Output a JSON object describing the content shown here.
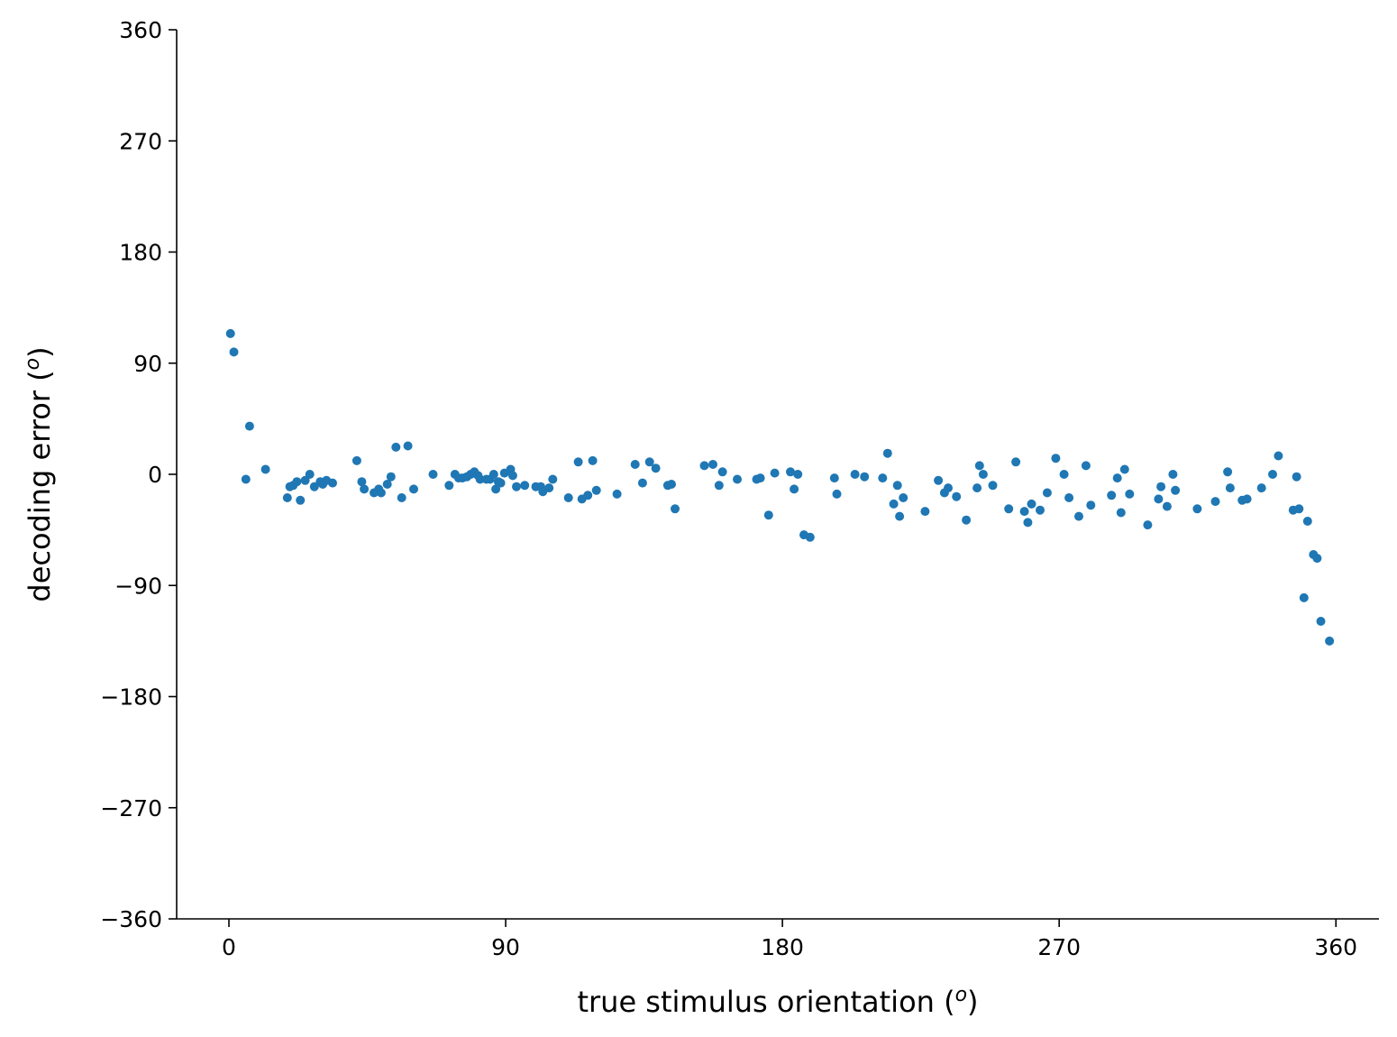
{
  "chart_data": {
    "type": "scatter",
    "xlabel": "true stimulus orientation (",
    "xlabel_sup": "o",
    "xlabel_end": ")",
    "ylabel": "decoding error (",
    "ylabel_sup": "o",
    "ylabel_end": ")",
    "xlim": [
      -17,
      374
    ],
    "ylim": [
      -360,
      360
    ],
    "xticks": [
      0,
      90,
      180,
      270,
      360
    ],
    "xtick_labels": [
      "0",
      "90",
      "180",
      "270",
      "360"
    ],
    "yticks": [
      -360,
      -270,
      -180,
      -90,
      0,
      90,
      180,
      270,
      360
    ],
    "ytick_labels": [
      "−360",
      "−270",
      "−180",
      "−90",
      "0",
      "90",
      "180",
      "270",
      "360"
    ],
    "grid": false,
    "marker_color": "#1f77b4",
    "points": [
      [
        0.5,
        114
      ],
      [
        1.6,
        99
      ],
      [
        5.5,
        -4
      ],
      [
        6.7,
        39
      ],
      [
        11.9,
        4
      ],
      [
        19,
        -19
      ],
      [
        19.8,
        -10
      ],
      [
        20.9,
        -9
      ],
      [
        22.1,
        -6
      ],
      [
        23.2,
        -21
      ],
      [
        24.8,
        -5
      ],
      [
        26.3,
        0
      ],
      [
        27.8,
        -10
      ],
      [
        29.7,
        -6
      ],
      [
        30.5,
        -8
      ],
      [
        31.7,
        -5
      ],
      [
        33.7,
        -7
      ],
      [
        41.6,
        11
      ],
      [
        43.2,
        -6
      ],
      [
        44,
        -12
      ],
      [
        47.2,
        -15
      ],
      [
        48.7,
        -12
      ],
      [
        49.5,
        -15
      ],
      [
        51.5,
        -8
      ],
      [
        52.7,
        -2
      ],
      [
        54.3,
        22
      ],
      [
        56.2,
        -19
      ],
      [
        58.2,
        23
      ],
      [
        60.1,
        -12
      ],
      [
        66.4,
        0
      ],
      [
        71.6,
        -9
      ],
      [
        73.5,
        0
      ],
      [
        74.7,
        -3
      ],
      [
        75.9,
        -3
      ],
      [
        77.4,
        -2
      ],
      [
        78.6,
        0
      ],
      [
        79.8,
        2
      ],
      [
        81,
        -1
      ],
      [
        81.7,
        -4
      ],
      [
        83.7,
        -4
      ],
      [
        84.9,
        -4
      ],
      [
        86.1,
        0
      ],
      [
        86.8,
        -12
      ],
      [
        87.6,
        -6
      ],
      [
        88.4,
        -7
      ],
      [
        89.6,
        1
      ],
      [
        91.6,
        4
      ],
      [
        92.3,
        -1
      ],
      [
        93.5,
        -10
      ],
      [
        96.2,
        -9
      ],
      [
        99.8,
        -10
      ],
      [
        101.4,
        -10
      ],
      [
        102.1,
        -14
      ],
      [
        104.1,
        -11
      ],
      [
        105.3,
        -4
      ],
      [
        110.4,
        -19
      ],
      [
        113.6,
        10
      ],
      [
        114.8,
        -20
      ],
      [
        116.7,
        -17
      ],
      [
        118.3,
        11
      ],
      [
        119.5,
        -13
      ],
      [
        126.2,
        -16
      ],
      [
        132.1,
        8
      ],
      [
        134.5,
        -7
      ],
      [
        136.8,
        10
      ],
      [
        138.8,
        5
      ],
      [
        142.7,
        -9
      ],
      [
        143.9,
        -8
      ],
      [
        145.1,
        -28
      ],
      [
        154.6,
        7
      ],
      [
        157.4,
        8
      ],
      [
        159.4,
        -9
      ],
      [
        160.5,
        2
      ],
      [
        165.3,
        -4
      ],
      [
        171.6,
        -4
      ],
      [
        172.8,
        -3
      ],
      [
        175.5,
        -33
      ],
      [
        177.5,
        1
      ],
      [
        182.6,
        2
      ],
      [
        183.8,
        -12
      ],
      [
        185,
        0
      ],
      [
        187,
        -49
      ],
      [
        189,
        -51
      ],
      [
        196.9,
        -3
      ],
      [
        197.7,
        -16
      ],
      [
        203.6,
        0
      ],
      [
        206.7,
        -2
      ],
      [
        212.6,
        -3
      ],
      [
        214.2,
        17
      ],
      [
        216.2,
        -24
      ],
      [
        217.4,
        -9
      ],
      [
        218.1,
        -34
      ],
      [
        219.3,
        -19
      ],
      [
        226.4,
        -30
      ],
      [
        230.7,
        -5
      ],
      [
        232.7,
        -15
      ],
      [
        233.9,
        -11
      ],
      [
        236.6,
        -18
      ],
      [
        239.8,
        -37
      ],
      [
        243.3,
        -11
      ],
      [
        244.1,
        7
      ],
      [
        245.3,
        0
      ],
      [
        248.4,
        -9
      ],
      [
        253.6,
        -28
      ],
      [
        255.9,
        10
      ],
      [
        258.7,
        -30
      ],
      [
        259.8,
        -39
      ],
      [
        261,
        -24
      ],
      [
        263.8,
        -29
      ],
      [
        266.1,
        -15
      ],
      [
        268.9,
        13
      ],
      [
        271.6,
        0
      ],
      [
        273.2,
        -19
      ],
      [
        276.4,
        -34
      ],
      [
        278.7,
        7
      ],
      [
        280.3,
        -25
      ],
      [
        287,
        -17
      ],
      [
        288.9,
        -3
      ],
      [
        290.1,
        -31
      ],
      [
        291.3,
        4
      ],
      [
        292.9,
        -16
      ],
      [
        298.8,
        -41
      ],
      [
        302.3,
        -20
      ],
      [
        303.1,
        -10
      ],
      [
        305.1,
        -26
      ],
      [
        307,
        0
      ],
      [
        307.8,
        -13
      ],
      [
        314.9,
        -28
      ],
      [
        320.8,
        -22
      ],
      [
        324.8,
        2
      ],
      [
        325.6,
        -11
      ],
      [
        329.5,
        -21
      ],
      [
        331.1,
        -20
      ],
      [
        335.8,
        -11
      ],
      [
        339.4,
        0
      ],
      [
        341.3,
        15
      ],
      [
        346.1,
        -29
      ],
      [
        347.2,
        -2
      ],
      [
        348,
        -28
      ],
      [
        349.6,
        -100
      ],
      [
        350.8,
        -38
      ],
      [
        352.7,
        -65
      ],
      [
        353.9,
        -68
      ],
      [
        355.1,
        -119
      ],
      [
        357.9,
        -135
      ]
    ]
  }
}
